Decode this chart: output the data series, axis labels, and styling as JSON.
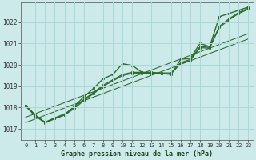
{
  "background_color": "#cceaea",
  "grid_color": "#aed8d8",
  "line_color": "#2d6a2d",
  "title": "Graphe pression niveau de la mer (hPa)",
  "xlim": [
    -0.5,
    23.5
  ],
  "ylim": [
    1016.5,
    1022.9
  ],
  "xticks": [
    0,
    1,
    2,
    3,
    4,
    5,
    6,
    7,
    8,
    9,
    10,
    11,
    12,
    13,
    14,
    15,
    16,
    17,
    18,
    19,
    20,
    21,
    22,
    23
  ],
  "yticks": [
    1017,
    1018,
    1019,
    1020,
    1021,
    1022
  ],
  "main_series": [
    1018.1,
    1017.65,
    1017.3,
    1017.5,
    1017.65,
    1018.05,
    1018.5,
    1018.9,
    1019.35,
    1019.55,
    1020.05,
    1019.97,
    1019.65,
    1019.6,
    1019.6,
    1019.55,
    1020.25,
    1020.3,
    1021.0,
    1020.85,
    1022.25,
    1022.4,
    1022.55,
    1022.7
  ],
  "straight_series1": [
    1018.1,
    1017.62,
    1017.32,
    1017.52,
    1017.7,
    1018.0,
    1018.38,
    1018.7,
    1019.05,
    1019.3,
    1019.55,
    1019.65,
    1019.65,
    1019.65,
    1019.62,
    1019.62,
    1020.1,
    1020.25,
    1020.85,
    1020.82,
    1021.8,
    1022.15,
    1022.45,
    1022.65
  ],
  "straight_series2": [
    1018.05,
    1017.6,
    1017.28,
    1017.48,
    1017.65,
    1017.95,
    1018.33,
    1018.65,
    1019.0,
    1019.25,
    1019.5,
    1019.6,
    1019.6,
    1019.6,
    1019.58,
    1019.58,
    1020.05,
    1020.2,
    1020.8,
    1020.78,
    1021.75,
    1022.1,
    1022.4,
    1022.6
  ],
  "linear_series": [
    1017.3,
    1017.47,
    1017.64,
    1017.81,
    1017.98,
    1018.15,
    1018.32,
    1018.49,
    1018.66,
    1018.83,
    1019.0,
    1019.17,
    1019.34,
    1019.51,
    1019.68,
    1019.85,
    1020.02,
    1020.19,
    1020.36,
    1020.53,
    1020.7,
    1020.87,
    1021.04,
    1021.21
  ],
  "linear_series2": [
    1017.55,
    1017.72,
    1017.89,
    1018.06,
    1018.23,
    1018.4,
    1018.57,
    1018.74,
    1018.91,
    1019.08,
    1019.25,
    1019.42,
    1019.59,
    1019.76,
    1019.93,
    1020.1,
    1020.27,
    1020.44,
    1020.61,
    1020.78,
    1020.95,
    1021.12,
    1021.29,
    1021.46
  ],
  "marker_size": 2.0,
  "line_width": 0.9,
  "tick_fontsize": 5.0,
  "label_fontsize": 6.0
}
